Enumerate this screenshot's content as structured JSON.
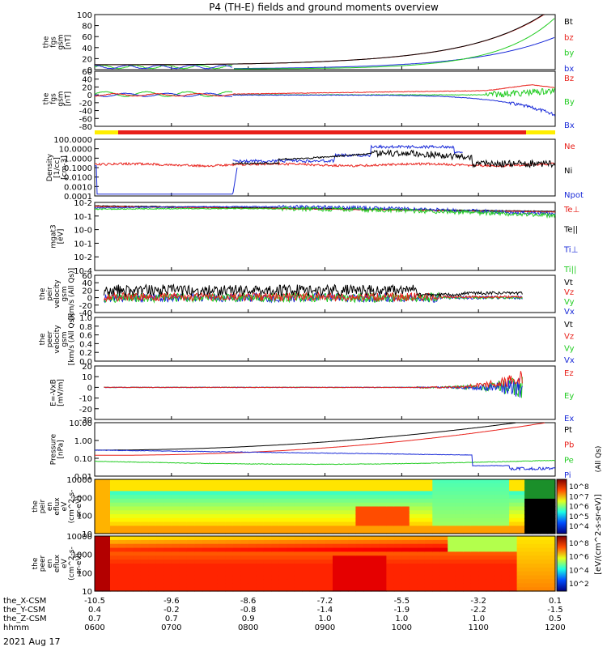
{
  "title": "P4 (TH-E) fields and ground moments overview",
  "colors": {
    "black": "#000000",
    "red": "#e8201a",
    "green": "#22cc22",
    "blue": "#1a2bd8"
  },
  "chart_data": [
    {
      "type": "line",
      "ylabel": [
        "the",
        "fgs",
        "gsm",
        "[nT]"
      ],
      "yticks": [
        "0",
        "20",
        "40",
        "60",
        "80",
        "100"
      ],
      "ylim": [
        0,
        100
      ],
      "legend": [
        {
          "name": "Bt",
          "color": "black"
        },
        {
          "name": "bz",
          "color": "red"
        },
        {
          "name": "by",
          "color": "green"
        },
        {
          "name": "bx",
          "color": "blue"
        }
      ]
    },
    {
      "type": "line",
      "ylabel": [
        "the",
        "fgs",
        "gsm",
        "[nT]"
      ],
      "yticks": [
        "-80",
        "-60",
        "-40",
        "-20",
        "0",
        "20",
        "40",
        "60"
      ],
      "ylim": [
        -80,
        60
      ],
      "legend": [
        {
          "name": "Bz",
          "color": "red"
        },
        {
          "name": "By",
          "color": "green"
        },
        {
          "name": "Bx",
          "color": "blue"
        }
      ]
    },
    {
      "type": "line",
      "ylabel": [
        "Density",
        "[1/cc]",
        "[cm-3]"
      ],
      "yticks": [
        "0.0001",
        "0.0010",
        "0.0100",
        "0.1000",
        "1.0000",
        "10.0000",
        "100.0000"
      ],
      "yscale": "log",
      "legend": [
        {
          "name": "Ne",
          "color": "red"
        },
        {
          "name": "Ni",
          "color": "black"
        },
        {
          "name": "Npot",
          "color": "blue"
        }
      ]
    },
    {
      "type": "line",
      "ylabel": [
        "mgat3",
        "[eV]"
      ],
      "yticks": [
        "10-4",
        "10-2",
        "10-1",
        "10-0",
        "10-1",
        "10-2"
      ],
      "yscale": "log",
      "legend": [
        {
          "name": "Te⊥",
          "color": "red"
        },
        {
          "name": "Te||",
          "color": "black"
        },
        {
          "name": "Ti⊥",
          "color": "blue"
        },
        {
          "name": "Ti||",
          "color": "green"
        }
      ]
    },
    {
      "type": "line",
      "ylabel": [
        "the",
        "peir",
        "velocity",
        "gsm",
        "[km/s (All Qs)]"
      ],
      "yticks": [
        "-40",
        "-20",
        "0",
        "20",
        "40",
        "60"
      ],
      "ylim": [
        -40,
        60
      ],
      "legend": [
        {
          "name": "Vt",
          "color": "black"
        },
        {
          "name": "Vz",
          "color": "red"
        },
        {
          "name": "Vy",
          "color": "green"
        },
        {
          "name": "Vx",
          "color": "blue"
        }
      ]
    },
    {
      "type": "line",
      "ylabel": [
        "the",
        "peer",
        "velocity",
        "gsm",
        "[km/s (All Qs)]"
      ],
      "yticks": [
        "0.0",
        "0.2",
        "0.4",
        "0.6",
        "0.8",
        "1.0"
      ],
      "ylim": [
        0,
        1
      ],
      "legend": [
        {
          "name": "Vt",
          "color": "black"
        },
        {
          "name": "Vz",
          "color": "red"
        },
        {
          "name": "Vy",
          "color": "green"
        },
        {
          "name": "Vx",
          "color": "blue"
        }
      ]
    },
    {
      "type": "line",
      "ylabel": [
        "E=-VxB",
        "[mV/m]"
      ],
      "yticks": [
        "-30",
        "-20",
        "-10",
        "0",
        "10",
        "20"
      ],
      "ylim": [
        -30,
        20
      ],
      "legend": [
        {
          "name": "Ez",
          "color": "red"
        },
        {
          "name": "Ey",
          "color": "green"
        },
        {
          "name": "Ex",
          "color": "blue"
        }
      ]
    },
    {
      "type": "line",
      "ylabel": [
        "Pressure",
        "[nPa]"
      ],
      "yticks": [
        "0.01",
        "0.10",
        "1.00",
        "10.00"
      ],
      "yscale": "log",
      "legend": [
        {
          "name": "Pt",
          "color": "black"
        },
        {
          "name": "Pb",
          "color": "red"
        },
        {
          "name": "Pe",
          "color": "green"
        },
        {
          "name": "Pi",
          "color": "blue"
        }
      ],
      "legend_suffix": "(All Qs)"
    },
    {
      "type": "heatmap",
      "ylabel": [
        "the",
        "peir",
        "en",
        "eflux",
        "eV",
        "(cm^2-s-",
        "sr-eV)"
      ],
      "yticks": [
        "10",
        "100",
        "1000",
        "10000"
      ],
      "yscale": "log"
    },
    {
      "type": "heatmap",
      "ylabel": [
        "the",
        "peer",
        "en",
        "eflux",
        "eV",
        "(cm^2-s-",
        "sr-eV)"
      ],
      "yticks": [
        "10",
        "100",
        "1000",
        "10000"
      ],
      "yscale": "log"
    }
  ],
  "colorbar": {
    "label": "[eV/(cm^2-s-sr-eV)]",
    "upper_ticks": [
      "10^8",
      "10^7",
      "10^6",
      "10^5",
      "10^4"
    ],
    "lower_ticks": [
      "10^8",
      "10^6",
      "10^4",
      "10^2"
    ]
  },
  "xaxis": {
    "rows": [
      {
        "label": "the_X-CSM",
        "values": [
          "-10.5",
          "-9.6",
          "-8.6",
          "-7.2",
          "-5.5",
          "-3.2",
          "0.1"
        ]
      },
      {
        "label": "the_Y-CSM",
        "values": [
          "0.4",
          "-0.2",
          "-0.8",
          "-1.4",
          "-1.9",
          "-2.2",
          "-1.5"
        ]
      },
      {
        "label": "the_Z-CSM",
        "values": [
          "0.7",
          "0.7",
          "0.9",
          "1.0",
          "1.0",
          "1.0",
          "0.5"
        ]
      },
      {
        "label": "hhmm",
        "values": [
          "0600",
          "0700",
          "0800",
          "0900",
          "1000",
          "1100",
          "1200"
        ]
      }
    ],
    "date": "2021 Aug 17"
  }
}
